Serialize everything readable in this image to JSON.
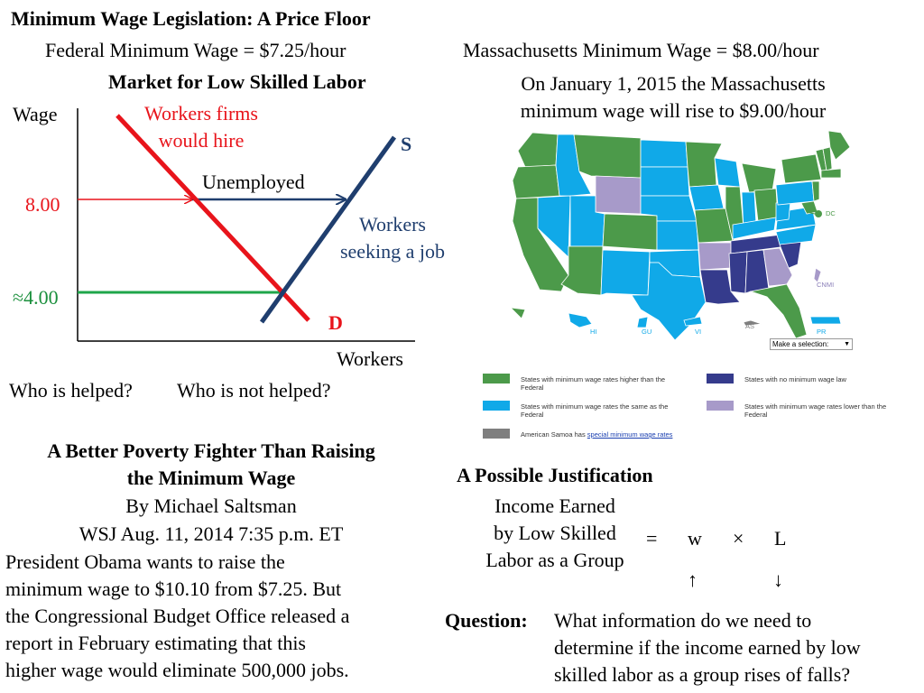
{
  "header": {
    "title": "Minimum Wage Legislation: A Price Floor",
    "federal_min_wage": "Federal Minimum Wage = $7.25/hour",
    "ma_min_wage": "Massachusetts Minimum Wage = $8.00/hour",
    "ma_note_line1": "On January 1, 2015 the Massachusetts",
    "ma_note_line2": "minimum wage will rise to $9.00/hour"
  },
  "graph": {
    "title": "Market for Low Skilled Labor",
    "ylabel": "Wage",
    "xlabel": "Workers",
    "price_floor": "8.00",
    "equilibrium": "≈4.00",
    "demand_label": "D",
    "supply_label": "S",
    "demand_annotation_line1": "Workers firms",
    "demand_annotation_line2": "would hire",
    "supply_annotation_line1": "Workers",
    "supply_annotation_line2": "seeking a job",
    "gap_label": "Unemployed",
    "colors": {
      "demand": "#e8141b",
      "supply": "#1f3e6e",
      "equilibrium_line": "#1fa64a"
    }
  },
  "questions": {
    "helped": "Who is helped?",
    "not_helped": "Who is not helped?"
  },
  "article": {
    "title_line1": "A Better Poverty Fighter Than Raising",
    "title_line2": "the Minimum Wage",
    "byline": "By Michael Saltsman",
    "source": "WSJ Aug. 11, 2014 7:35 p.m. ET",
    "body": [
      "President Obama wants to raise the",
      "minimum wage to $10.10 from $7.25. But",
      "the Congressional Budget Office released a",
      "report in February estimating that this",
      "higher wage would eliminate 500,000 jobs."
    ]
  },
  "map": {
    "labels": {
      "dc": "DC",
      "cnmi": "CNMI",
      "hi": "HI",
      "gu": "GU",
      "vi": "VI",
      "as": "AS",
      "pr": "PR"
    },
    "select_label": "Make a selection:",
    "colors": {
      "higher": "#4c9a4a",
      "same": "#10a9e8",
      "none": "#353b8c",
      "lower": "#a79ac9",
      "samoa": "#7f7f7f"
    },
    "legend": {
      "higher_line1": "States with minimum wage rates higher than the",
      "higher_line2": "Federal",
      "same_line1": "States with minimum wage rates the same as the",
      "same_line2": "Federal",
      "samoa_prefix": "American Samoa has ",
      "samoa_link": "special minimum wage rates",
      "none": "States with no minimum wage law",
      "lower_line1": "States with minimum wage rates lower than the",
      "lower_line2": "Federal"
    }
  },
  "justification": {
    "title": "A Possible Justification",
    "income_line1": "Income Earned",
    "income_line2": "by Low Skilled",
    "income_line3": "Labor as a Group",
    "equals": "=",
    "w": "w",
    "times": "×",
    "l": "L",
    "w_arrow": "↑",
    "l_arrow": "↓"
  },
  "question": {
    "label": "Question:",
    "line1": "What information do we need to",
    "line2": "determine if the income earned by low",
    "line3": "skilled labor as a group rises of falls?"
  }
}
